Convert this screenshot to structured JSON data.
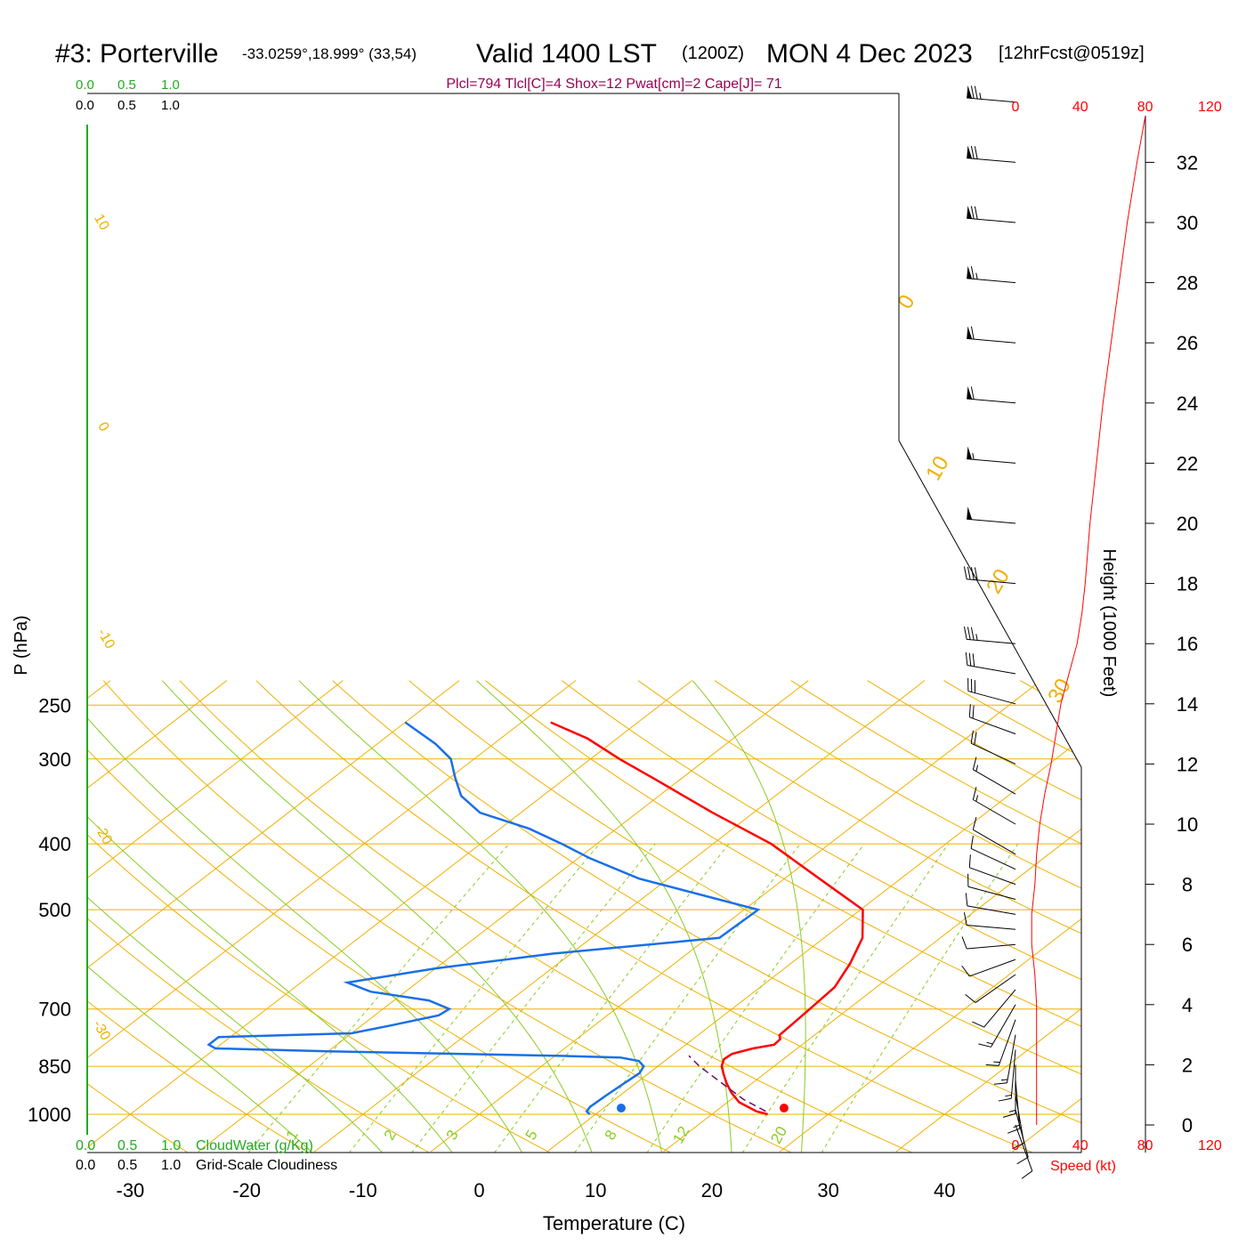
{
  "header": {
    "station": "#3: Porterville",
    "coords": "-33.0259°,18.999° (33,54)",
    "valid": "Valid 1400 LST",
    "zulu": "(1200Z)",
    "date": "MON 4 Dec 2023",
    "fcst": "[12hrFcst@0519z]"
  },
  "indices": "Plcl=794 Tlcl[C]=4 Shox=12 Pwat[cm]=2 Cape[J]= 71",
  "scales": {
    "cloudwater_top": [
      "0.0",
      "0.5",
      "1.0"
    ],
    "cloudiness_top": [
      "0.0",
      "0.5",
      "1.0"
    ],
    "cloudwater_bottom": [
      "0.0",
      "0.5",
      "1.0"
    ],
    "cloudiness_bottom": [
      "0.0",
      "0.5",
      "1.0"
    ],
    "cloudwater_label": "CloudWater (g/Kg)",
    "cloudiness_label": "Grid-Scale Cloudiness",
    "speed_ticks": [
      "0",
      "40",
      "80",
      "120"
    ],
    "speed_label": "Speed (kt)"
  },
  "colors": {
    "temperature": "#ff0000",
    "dewpoint": "#1a6fe8",
    "parcel": "#6a0c6a",
    "isotherm": "#f0b000",
    "dry_adiabat": "#f0b000",
    "moist_adiabat": "#88cc22",
    "mixing_ratio": "#88cc22",
    "cloudwater": "#22aa22",
    "speed": "#ff0000",
    "indices": "#990055"
  },
  "chart_data": {
    "type": "skew-t log-p",
    "xlabel": "Temperature (C)",
    "ylabel": "P (hPa)",
    "y2label": "Height (1000 Feet)",
    "x_ticks": [
      -30,
      -20,
      -10,
      0,
      10,
      20,
      30,
      40
    ],
    "p_ticks": [
      250,
      300,
      400,
      500,
      700,
      850,
      1000
    ],
    "height_ticks": [
      0,
      2,
      4,
      6,
      8,
      10,
      12,
      14,
      16,
      18,
      20,
      22,
      24,
      26,
      28,
      30,
      32
    ],
    "dry_adiabat_labels": [
      "10",
      "0",
      "-10",
      "-20",
      "-30",
      "0",
      "10",
      "20",
      "30"
    ],
    "mixing_ratio_labels": [
      "1",
      "2",
      "3",
      "5",
      "8",
      "12",
      "20"
    ],
    "temperature": [
      {
        "p": 1000,
        "t": 24.8
      },
      {
        "p": 990,
        "t": 23.5
      },
      {
        "p": 960,
        "t": 21.0
      },
      {
        "p": 930,
        "t": 19.3
      },
      {
        "p": 900,
        "t": 17.8
      },
      {
        "p": 870,
        "t": 16.4
      },
      {
        "p": 850,
        "t": 15.5
      },
      {
        "p": 830,
        "t": 14.9
      },
      {
        "p": 815,
        "t": 15.0
      },
      {
        "p": 800,
        "t": 16.2
      },
      {
        "p": 790,
        "t": 17.6
      },
      {
        "p": 775,
        "t": 17.5
      },
      {
        "p": 765,
        "t": 17.0
      },
      {
        "p": 700,
        "t": 16.7
      },
      {
        "p": 650,
        "t": 16.4
      },
      {
        "p": 600,
        "t": 15.1
      },
      {
        "p": 550,
        "t": 13.3
      },
      {
        "p": 500,
        "t": 10.2
      },
      {
        "p": 450,
        "t": 3.0
      },
      {
        "p": 400,
        "t": -5.0
      },
      {
        "p": 360,
        "t": -13.5
      },
      {
        "p": 320,
        "t": -22.5
      },
      {
        "p": 300,
        "t": -27.5
      },
      {
        "p": 280,
        "t": -32.5
      },
      {
        "p": 265,
        "t": -37.5
      }
    ],
    "dewpoint": [
      {
        "p": 1000,
        "t": 9.5
      },
      {
        "p": 990,
        "t": 8.9
      },
      {
        "p": 975,
        "t": 8.7
      },
      {
        "p": 940,
        "t": 8.8
      },
      {
        "p": 900,
        "t": 9.0
      },
      {
        "p": 870,
        "t": 9.2
      },
      {
        "p": 850,
        "t": 8.8
      },
      {
        "p": 835,
        "t": 7.8
      },
      {
        "p": 825,
        "t": 5.8
      },
      {
        "p": 820,
        "t": 0.0
      },
      {
        "p": 815,
        "t": -8.0
      },
      {
        "p": 808,
        "t": -20.0
      },
      {
        "p": 800,
        "t": -30.0
      },
      {
        "p": 790,
        "t": -31.0
      },
      {
        "p": 770,
        "t": -31.0
      },
      {
        "p": 760,
        "t": -20.0
      },
      {
        "p": 740,
        "t": -17.5
      },
      {
        "p": 715,
        "t": -14.5
      },
      {
        "p": 700,
        "t": -14.3
      },
      {
        "p": 680,
        "t": -17.0
      },
      {
        "p": 660,
        "t": -23.0
      },
      {
        "p": 640,
        "t": -26.0
      },
      {
        "p": 610,
        "t": -20.0
      },
      {
        "p": 580,
        "t": -11.5
      },
      {
        "p": 550,
        "t": 1.0
      },
      {
        "p": 500,
        "t": 1.2
      },
      {
        "p": 450,
        "t": -12.5
      },
      {
        "p": 420,
        "t": -19.0
      },
      {
        "p": 400,
        "t": -23.0
      },
      {
        "p": 380,
        "t": -27.5
      },
      {
        "p": 360,
        "t": -33.5
      },
      {
        "p": 340,
        "t": -37.0
      },
      {
        "p": 320,
        "t": -39.5
      },
      {
        "p": 300,
        "t": -42.0
      },
      {
        "p": 285,
        "t": -45.0
      },
      {
        "p": 265,
        "t": -50.0
      }
    ],
    "parcel": [
      {
        "p": 990,
        "t": 24.3
      },
      {
        "p": 950,
        "t": 21.0
      },
      {
        "p": 900,
        "t": 17.4
      },
      {
        "p": 850,
        "t": 13.6
      },
      {
        "p": 820,
        "t": 11.5
      }
    ],
    "surface": {
      "temperature": 26.2,
      "dewpoint": 12.2
    },
    "wind": [
      {
        "h": 0.0,
        "dir": 160,
        "spd": 12
      },
      {
        "h": 0.5,
        "dir": 165,
        "spd": 12
      },
      {
        "h": 1.0,
        "dir": 170,
        "spd": 12
      },
      {
        "h": 1.5,
        "dir": 175,
        "spd": 13
      },
      {
        "h": 2.0,
        "dir": 180,
        "spd": 13
      },
      {
        "h": 2.5,
        "dir": 185,
        "spd": 13
      },
      {
        "h": 3.0,
        "dir": 190,
        "spd": 13
      },
      {
        "h": 3.5,
        "dir": 200,
        "spd": 13
      },
      {
        "h": 4.0,
        "dir": 210,
        "spd": 13
      },
      {
        "h": 4.5,
        "dir": 220,
        "spd": 12
      },
      {
        "h": 5.0,
        "dir": 235,
        "spd": 12
      },
      {
        "h": 5.5,
        "dir": 250,
        "spd": 11
      },
      {
        "h": 6.0,
        "dir": 265,
        "spd": 10
      },
      {
        "h": 6.5,
        "dir": 275,
        "spd": 10
      },
      {
        "h": 7.0,
        "dir": 280,
        "spd": 10
      },
      {
        "h": 7.5,
        "dir": 285,
        "spd": 10
      },
      {
        "h": 8.0,
        "dir": 290,
        "spd": 11
      },
      {
        "h": 8.5,
        "dir": 295,
        "spd": 11
      },
      {
        "h": 9.0,
        "dir": 300,
        "spd": 12
      },
      {
        "h": 10.0,
        "dir": 300,
        "spd": 13
      },
      {
        "h": 11.0,
        "dir": 300,
        "spd": 15
      },
      {
        "h": 12.0,
        "dir": 295,
        "spd": 18
      },
      {
        "h": 13.0,
        "dir": 290,
        "spd": 22
      },
      {
        "h": 14.0,
        "dir": 285,
        "spd": 28
      },
      {
        "h": 15.0,
        "dir": 280,
        "spd": 32
      },
      {
        "h": 16.0,
        "dir": 275,
        "spd": 36
      },
      {
        "h": 18.0,
        "dir": 275,
        "spd": 40
      },
      {
        "h": 20.0,
        "dir": 275,
        "spd": 50
      },
      {
        "h": 22.0,
        "dir": 275,
        "spd": 55
      },
      {
        "h": 24.0,
        "dir": 275,
        "spd": 58
      },
      {
        "h": 26.0,
        "dir": 275,
        "spd": 62
      },
      {
        "h": 28.0,
        "dir": 275,
        "spd": 66
      },
      {
        "h": 30.0,
        "dir": 275,
        "spd": 68
      },
      {
        "h": 32.0,
        "dir": 275,
        "spd": 72
      },
      {
        "h": 34.0,
        "dir": 275,
        "spd": 74
      }
    ],
    "speed_profile": [
      {
        "h": 0.0,
        "spd": 13
      },
      {
        "h": 1.0,
        "spd": 13
      },
      {
        "h": 2.0,
        "spd": 13
      },
      {
        "h": 3.0,
        "spd": 13
      },
      {
        "h": 4.0,
        "spd": 13
      },
      {
        "h": 5.0,
        "spd": 12
      },
      {
        "h": 6.0,
        "spd": 10
      },
      {
        "h": 7.0,
        "spd": 10
      },
      {
        "h": 8.0,
        "spd": 12
      },
      {
        "h": 9.0,
        "spd": 13
      },
      {
        "h": 10.0,
        "spd": 15
      },
      {
        "h": 11.0,
        "spd": 18
      },
      {
        "h": 12.0,
        "spd": 22
      },
      {
        "h": 13.0,
        "spd": 25
      },
      {
        "h": 14.0,
        "spd": 28
      },
      {
        "h": 15.0,
        "spd": 33
      },
      {
        "h": 16.0,
        "spd": 38
      },
      {
        "h": 17.0,
        "spd": 41
      },
      {
        "h": 18.0,
        "spd": 43
      },
      {
        "h": 20.0,
        "spd": 46
      },
      {
        "h": 22.0,
        "spd": 50
      },
      {
        "h": 24.0,
        "spd": 54
      },
      {
        "h": 26.0,
        "spd": 59
      },
      {
        "h": 28.0,
        "spd": 64
      },
      {
        "h": 30.0,
        "spd": 69
      },
      {
        "h": 32.0,
        "spd": 75
      },
      {
        "h": 33.5,
        "spd": 80
      }
    ]
  }
}
